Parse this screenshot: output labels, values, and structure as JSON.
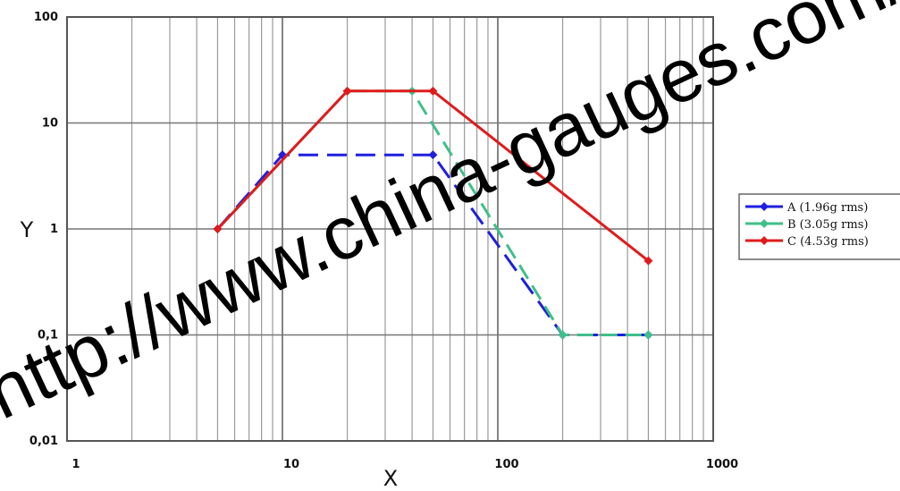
{
  "chart_data": {
    "type": "line",
    "title": "",
    "xlabel": "X",
    "ylabel": "Y",
    "xscale": "log",
    "yscale": "log",
    "xlim": [
      1,
      1000
    ],
    "ylim": [
      0.01,
      100
    ],
    "grid": true,
    "legend_position": "right",
    "x_tick_labels": [
      "1",
      "10",
      "100",
      "1000"
    ],
    "y_tick_labels": [
      "0,01",
      "0,1",
      "1",
      "10",
      "100"
    ],
    "series": [
      {
        "name": "A (1.96g rms)",
        "color": "#1f1fe0",
        "x": [
          5,
          10,
          50,
          200,
          500
        ],
        "y": [
          1,
          5,
          5,
          0.1,
          0.1
        ]
      },
      {
        "name": "B (3.05g rms)",
        "color": "#3fbf8a",
        "x": [
          5,
          20,
          40,
          200,
          500
        ],
        "y": [
          1,
          20,
          20,
          0.1,
          0.1
        ]
      },
      {
        "name": "C (4.53g rms)",
        "color": "#e01b1b",
        "x": [
          5,
          20,
          50,
          500
        ],
        "y": [
          1,
          20,
          20,
          0.5
        ]
      }
    ]
  },
  "watermark": "http://www.china-gauges.com/"
}
